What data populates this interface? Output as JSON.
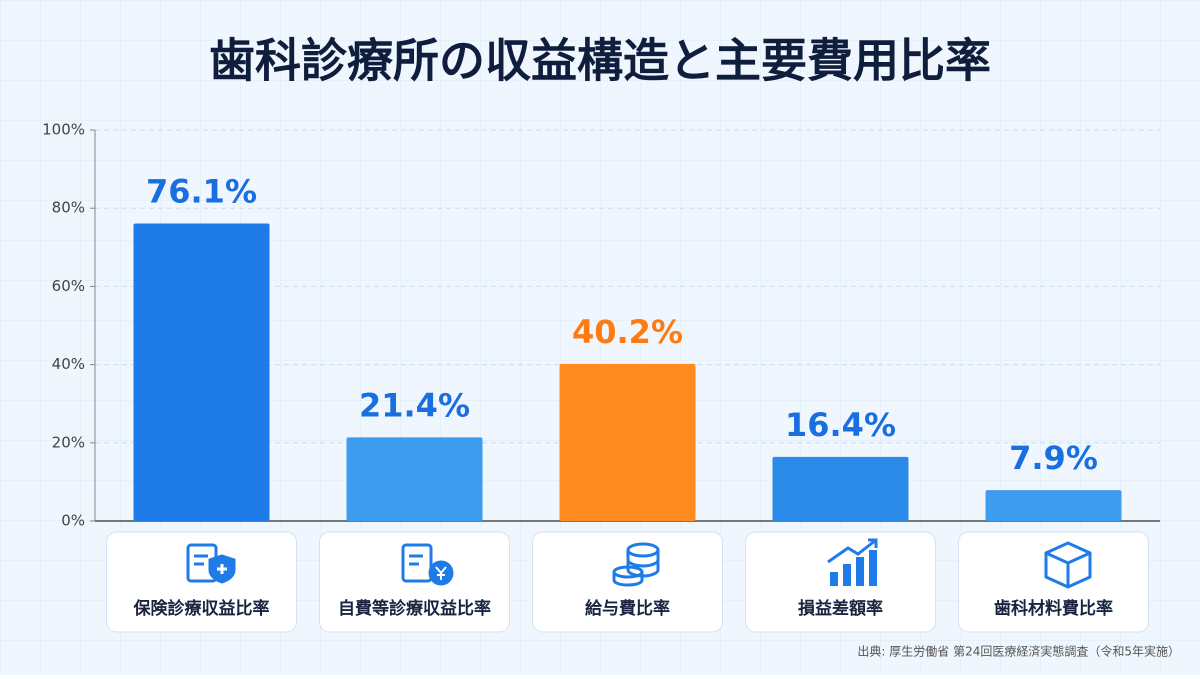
{
  "chart_data": {
    "type": "bar",
    "title": "歯科診療所の収益構造と主要費用比率",
    "categories": [
      "保険診療収益比率",
      "自費等診療収益比率",
      "給与費比率",
      "損益差額率",
      "歯科材料費比率"
    ],
    "values": [
      76.1,
      21.4,
      40.2,
      16.4,
      7.9
    ],
    "value_labels": [
      "76.1%",
      "21.4%",
      "40.2%",
      "16.4%",
      "7.9%"
    ],
    "colors": [
      "#1f7be8",
      "#3d9bf0",
      "#ff8a1f",
      "#2a8be8",
      "#3d9bf0"
    ],
    "label_colors": [
      "#1a6fe0",
      "#1a6fe0",
      "#ff7a10",
      "#1a6fe0",
      "#1a6fe0"
    ],
    "ylim": [
      0,
      100
    ],
    "yticks": [
      {
        "value": 0,
        "label": "0%"
      },
      {
        "value": 20,
        "label": "20%"
      },
      {
        "value": 40,
        "label": "40%"
      },
      {
        "value": 60,
        "label": "60%"
      },
      {
        "value": 80,
        "label": "80%"
      },
      {
        "value": 100,
        "label": "100%"
      }
    ],
    "grid": true,
    "source": "出典: 厚生労働省 第24回医療経済実態調査（令和5年実施）"
  }
}
